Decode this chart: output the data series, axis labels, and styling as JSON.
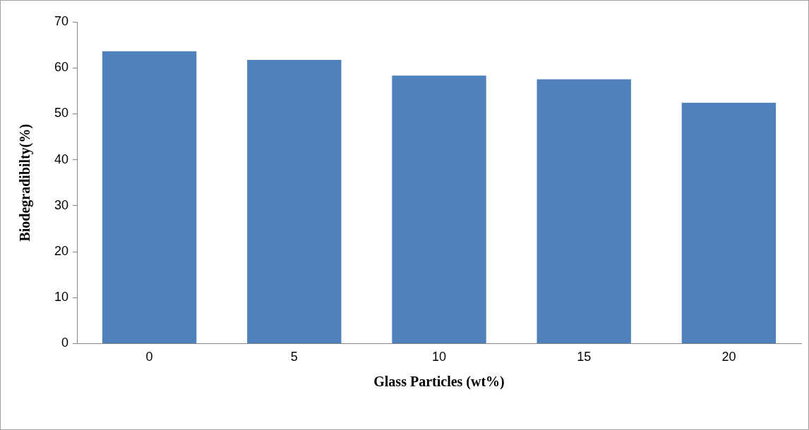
{
  "chart_data": {
    "type": "bar",
    "xlabel": "Glass Particles (wt%)",
    "ylabel": "Biodegradibilty(%)",
    "categories": [
      "0",
      "5",
      "10",
      "15",
      "20"
    ],
    "values": [
      63.6,
      61.7,
      58.3,
      57.5,
      52.4
    ],
    "color": "#4f81bd",
    "ylim": [
      0,
      70
    ],
    "yticks": [
      0,
      10,
      20,
      30,
      40,
      50,
      60,
      70
    ],
    "grid": false,
    "legend": false
  }
}
